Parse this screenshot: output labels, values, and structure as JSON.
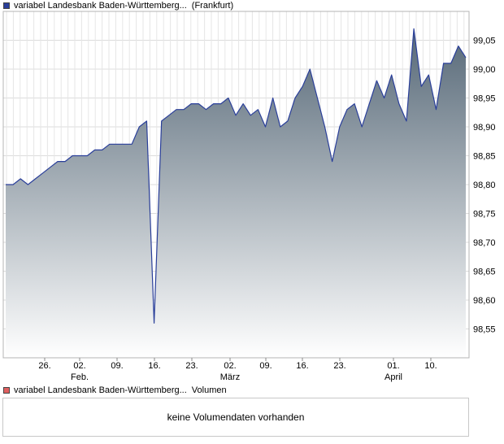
{
  "legend": {
    "price_name": "variabel Landesbank Baden-Württemberg...",
    "price_exchange": "(Frankfurt)",
    "price_color": "#2a3f9a",
    "volume_name": "variabel Landesbank Baden-Württemberg...",
    "volume_label": "Volumen",
    "volume_color": "#e06060"
  },
  "volume_panel": {
    "message": "keine Volumendaten vorhanden"
  },
  "chart_data": {
    "type": "area",
    "title": "",
    "xlabel": "",
    "ylabel": "",
    "ylim": [
      98.5,
      99.1
    ],
    "grid": true,
    "y_ticks": [
      "98,55",
      "98,60",
      "98,65",
      "98,70",
      "98,75",
      "98,80",
      "98,85",
      "98,90",
      "98,95",
      "99,00",
      "99,05"
    ],
    "y_tick_values": [
      98.55,
      98.6,
      98.65,
      98.7,
      98.75,
      98.8,
      98.85,
      98.9,
      98.95,
      99.0,
      99.05
    ],
    "x_day_ticks": [
      "26.",
      "02.",
      "09.",
      "16.",
      "23.",
      "02.",
      "09.",
      "16.",
      "23.",
      "01.",
      "10."
    ],
    "x_month_labels": [
      "Feb.",
      "März",
      "April"
    ],
    "x_month_tick_index": [
      1,
      5,
      9
    ],
    "series": [
      {
        "name": "variabel Landesbank Baden-Württemberg...",
        "values": [
          98.8,
          98.8,
          98.81,
          98.8,
          98.81,
          98.82,
          98.83,
          98.84,
          98.84,
          98.85,
          98.85,
          98.85,
          98.86,
          98.86,
          98.87,
          98.87,
          98.87,
          98.87,
          98.9,
          98.91,
          98.56,
          98.91,
          98.92,
          98.93,
          98.93,
          98.94,
          98.94,
          98.93,
          98.94,
          98.94,
          98.95,
          98.92,
          98.94,
          98.92,
          98.93,
          98.9,
          98.95,
          98.9,
          98.91,
          98.95,
          98.97,
          99.0,
          98.95,
          98.9,
          98.84,
          98.9,
          98.93,
          98.94,
          98.9,
          98.94,
          98.98,
          98.95,
          98.99,
          98.94,
          98.91,
          99.07,
          98.97,
          98.99,
          98.93,
          99.01,
          99.01,
          99.04,
          99.02
        ]
      }
    ]
  }
}
